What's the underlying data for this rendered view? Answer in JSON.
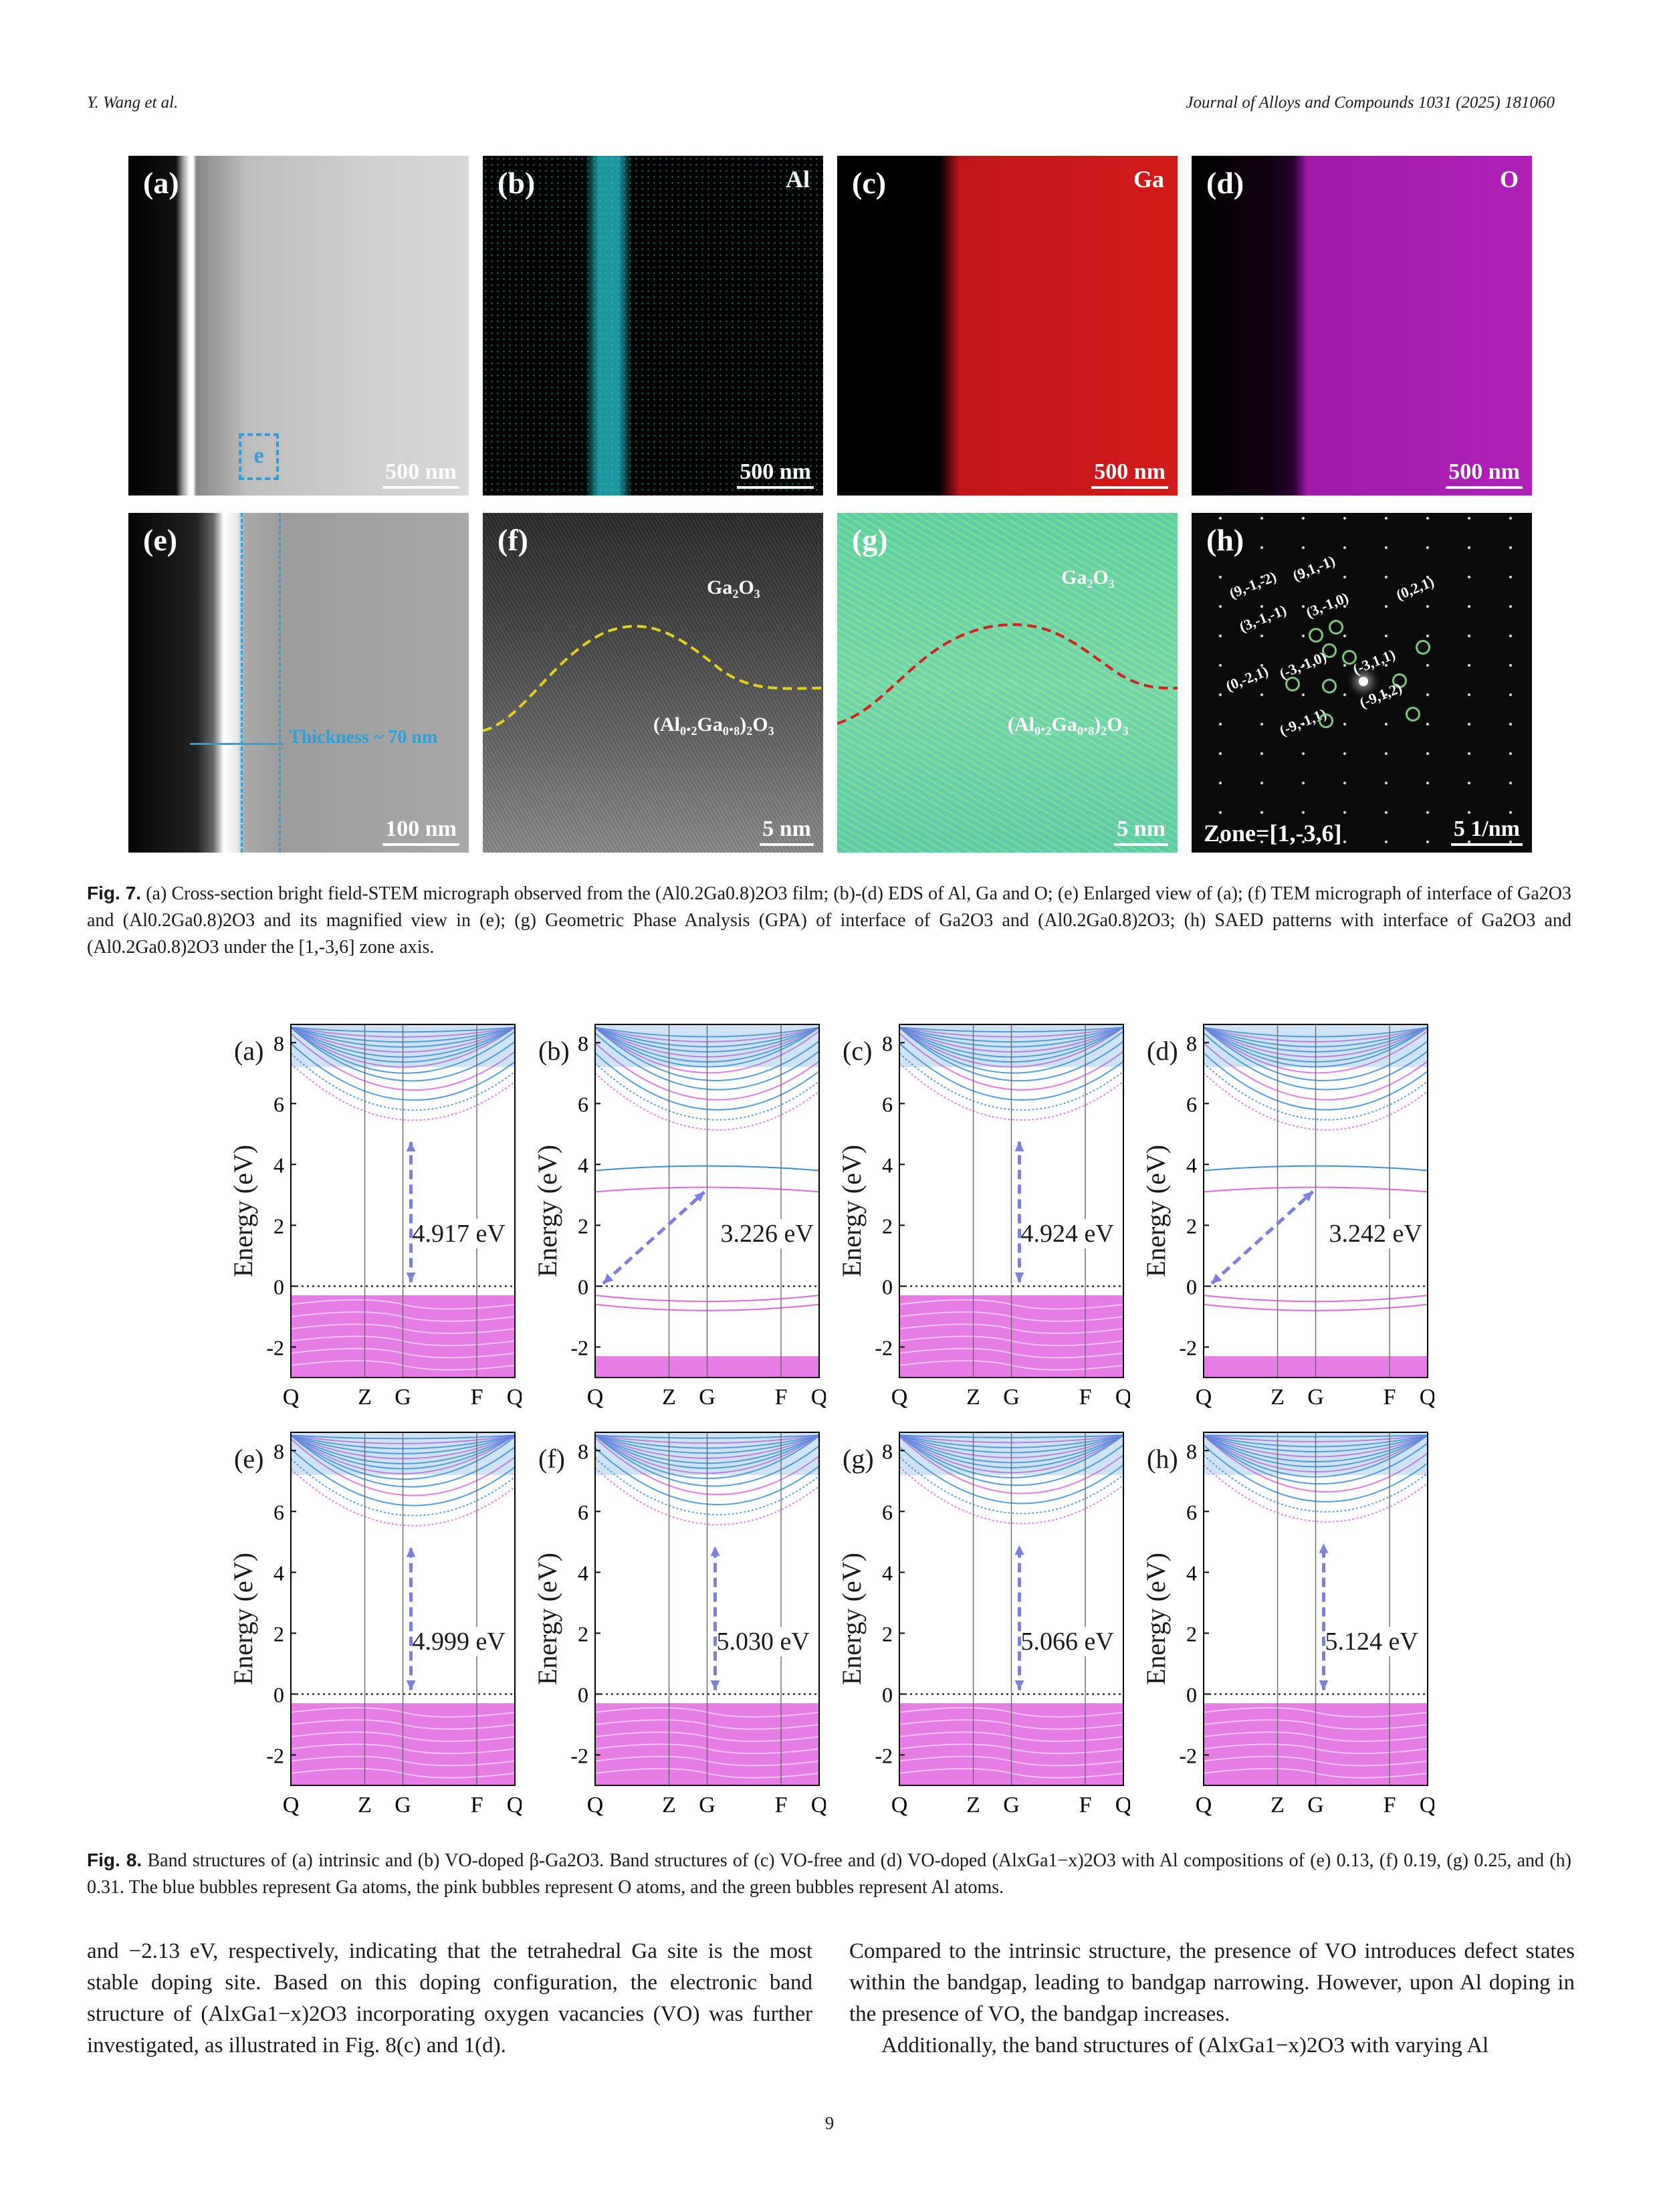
{
  "header": {
    "left": "Y. Wang et al.",
    "right": "Journal of Alloys and Compounds 1031 (2025) 181060"
  },
  "fig7": {
    "panels": [
      {
        "label": "(a)",
        "scale": "500 nm",
        "inset": "e"
      },
      {
        "label": "(b)",
        "element": "Al",
        "scale": "500 nm"
      },
      {
        "label": "(c)",
        "element": "Ga",
        "scale": "500 nm"
      },
      {
        "label": "(d)",
        "element": "O",
        "scale": "500 nm"
      },
      {
        "label": "(e)",
        "scale": "100 nm",
        "thickness": "Thickness ~ 70 nm"
      },
      {
        "label": "(f)",
        "scale": "5 nm",
        "top": "Ga₂O₃",
        "bottom": "(Al₀.₂Ga₀.₈)₂O₃"
      },
      {
        "label": "(g)",
        "scale": "5 nm",
        "top": "Ga₂O₃",
        "bottom": "(Al₀.₂Ga₀.₈)₂O₃"
      },
      {
        "label": "(h)",
        "scale": "5 1/nm",
        "zone": "Zone=[1,-3,6]"
      }
    ],
    "spots": [
      "(9,-1,-2)",
      "(9,1,-1)",
      "(3,-1,-1)",
      "(3,-1,0)",
      "(0,2,1)",
      "(0,-2,1)",
      "(-3,-1,0)",
      "(-3,1,1)",
      "(-9,1,2)",
      "(-9,-1,1)"
    ],
    "caption_label": "Fig. 7.",
    "caption": "(a) Cross-section bright field-STEM micrograph observed from the (Al0.2Ga0.8)2O3 film; (b)-(d) EDS of Al, Ga and O; (e) Enlarged view of (a); (f) TEM micrograph of interface of Ga2O3 and (Al0.2Ga0.8)2O3 and its magnified view in (e); (g) Geometric Phase Analysis (GPA) of interface of Ga2O3 and (Al0.2Ga0.8)2O3; (h) SAED patterns with interface of Ga2O3 and (Al0.2Ga0.8)2O3 under the [1,-3,6] zone axis."
  },
  "fig8": {
    "ylabel": "Energy (eV)",
    "yticks": [
      "8",
      "6",
      "4",
      "2",
      "0",
      "-2"
    ],
    "xticks": [
      "Q",
      "Z",
      "G",
      "F",
      "Q"
    ],
    "caption_label": "Fig. 8.",
    "caption": "Band structures of (a) intrinsic and (b) VO-doped β-Ga2O3. Band structures of (c) VO-free and (d) VO-doped (AlxGa1−x)2O3 with Al compositions of (e) 0.13, (f) 0.19, (g) 0.25, and (h) 0.31. The blue bubbles represent Ga atoms, the pink bubbles represent O atoms, and the green bubbles represent Al atoms."
  },
  "chart_data": [
    {
      "type": "line",
      "title": "(a)",
      "ylabel": "Energy (eV)",
      "x": [
        "Q",
        "Z",
        "G",
        "F",
        "Q"
      ],
      "ylim": [
        -3,
        8.6
      ],
      "annotation": "4.917 eV",
      "gap_ev": 4.917,
      "vbm": 0,
      "cbm": 4.917,
      "defect": false
    },
    {
      "type": "line",
      "title": "(b)",
      "ylabel": "Energy (eV)",
      "x": [
        "Q",
        "Z",
        "G",
        "F",
        "Q"
      ],
      "ylim": [
        -3,
        8.6
      ],
      "annotation": "3.226 eV",
      "gap_ev": 3.226,
      "vbm": 0,
      "cbm": 3.226,
      "defect": true
    },
    {
      "type": "line",
      "title": "(c)",
      "ylabel": "Energy (eV)",
      "x": [
        "Q",
        "Z",
        "G",
        "F",
        "Q"
      ],
      "ylim": [
        -3,
        8.6
      ],
      "annotation": "4.924 eV",
      "gap_ev": 4.924,
      "vbm": 0,
      "cbm": 4.924,
      "defect": false
    },
    {
      "type": "line",
      "title": "(d)",
      "ylabel": "Energy (eV)",
      "x": [
        "Q",
        "Z",
        "G",
        "F",
        "Q"
      ],
      "ylim": [
        -3,
        8.6
      ],
      "annotation": "3.242 eV",
      "gap_ev": 3.242,
      "vbm": 0,
      "cbm": 3.242,
      "defect": true
    },
    {
      "type": "line",
      "title": "(e)",
      "ylabel": "Energy (eV)",
      "x": [
        "Q",
        "Z",
        "G",
        "F",
        "Q"
      ],
      "ylim": [
        -3,
        8.6
      ],
      "annotation": "4.999 eV",
      "gap_ev": 4.999,
      "vbm": 0,
      "cbm": 4.999,
      "defect": false
    },
    {
      "type": "line",
      "title": "(f)",
      "ylabel": "Energy (eV)",
      "x": [
        "Q",
        "Z",
        "G",
        "F",
        "Q"
      ],
      "ylim": [
        -3,
        8.6
      ],
      "annotation": "5.030 eV",
      "gap_ev": 5.03,
      "vbm": 0,
      "cbm": 5.03,
      "defect": false
    },
    {
      "type": "line",
      "title": "(g)",
      "ylabel": "Energy (eV)",
      "x": [
        "Q",
        "Z",
        "G",
        "F",
        "Q"
      ],
      "ylim": [
        -3,
        8.6
      ],
      "annotation": "5.066 eV",
      "gap_ev": 5.066,
      "vbm": 0,
      "cbm": 5.066,
      "defect": false
    },
    {
      "type": "line",
      "title": "(h)",
      "ylabel": "Energy (eV)",
      "x": [
        "Q",
        "Z",
        "G",
        "F",
        "Q"
      ],
      "ylim": [
        -3,
        8.6
      ],
      "annotation": "5.124 eV",
      "gap_ev": 5.124,
      "vbm": 0,
      "cbm": 5.124,
      "defect": false
    }
  ],
  "body": {
    "left": "and −2.13 eV, respectively, indicating that the tetrahedral Ga site is the most stable doping site. Based on this doping configuration, the electronic band structure of (AlxGa1−x)2O3 incorporating oxygen vacancies (VO) was further investigated, as illustrated in Fig. 8(c) and 1(d).",
    "right_p1": "Compared to the intrinsic structure, the presence of VO introduces defect states within the bandgap, leading to bandgap narrowing. However, upon Al doping in the presence of VO, the bandgap increases.",
    "right_p2": "Additionally, the band structures of (AlxGa1−x)2O3 with varying Al"
  },
  "page_number": "9",
  "colors": {
    "ga_blue": "#3a8fd8",
    "o_pink": "#e066e0",
    "arrow": "#7b7fe0",
    "al_green": "#7ac97a"
  }
}
